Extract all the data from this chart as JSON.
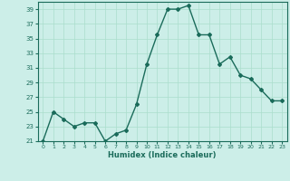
{
  "x": [
    0,
    1,
    2,
    3,
    4,
    5,
    6,
    7,
    8,
    9,
    10,
    11,
    12,
    13,
    14,
    15,
    16,
    17,
    18,
    19,
    20,
    21,
    22,
    23
  ],
  "y": [
    21,
    25,
    24,
    23,
    23.5,
    23.5,
    21,
    22,
    22.5,
    26,
    31.5,
    35.5,
    39,
    39,
    39.5,
    35.5,
    35.5,
    31.5,
    32.5,
    30,
    29.5,
    28,
    26.5,
    26.5
  ],
  "xlabel": "Humidex (Indice chaleur)",
  "ylim": [
    21,
    40
  ],
  "yticks": [
    21,
    23,
    25,
    27,
    29,
    31,
    33,
    35,
    37,
    39
  ],
  "xticks": [
    0,
    1,
    2,
    3,
    4,
    5,
    6,
    7,
    8,
    9,
    10,
    11,
    12,
    13,
    14,
    15,
    16,
    17,
    18,
    19,
    20,
    21,
    22,
    23
  ],
  "line_color": "#1a6b5a",
  "bg_color": "#cceee8",
  "grid_color": "#aaddcc",
  "marker": "D",
  "marker_size": 2.0,
  "line_width": 1.0
}
